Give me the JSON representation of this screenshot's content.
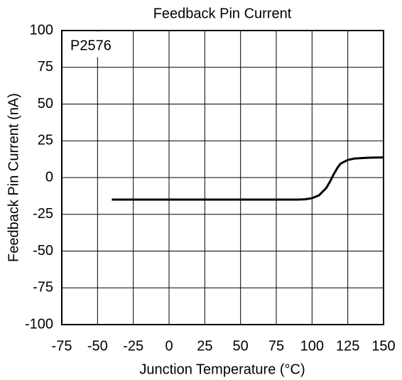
{
  "chart_data": {
    "type": "line",
    "title": "Feedback Pin Current",
    "xlabel": "Junction Temperature (°C)",
    "ylabel": "Feedback Pin Current (nA)",
    "annotation": "P2576",
    "x": [
      -40,
      90,
      95,
      100,
      105,
      110,
      113,
      115,
      118,
      120,
      125,
      130,
      140,
      150
    ],
    "y": [
      -15,
      -15,
      -14.8,
      -14,
      -12,
      -7,
      -2,
      2,
      7,
      9.5,
      12,
      13,
      13.5,
      13.7
    ],
    "color": "#000000",
    "xlim": [
      -75,
      150
    ],
    "xticks": [
      -75,
      -50,
      -25,
      0,
      25,
      50,
      75,
      100,
      125,
      150
    ],
    "ylim": [
      -100,
      100
    ],
    "yticks": [
      -100,
      -75,
      -50,
      -25,
      0,
      25,
      50,
      75,
      100
    ],
    "grid": true
  }
}
